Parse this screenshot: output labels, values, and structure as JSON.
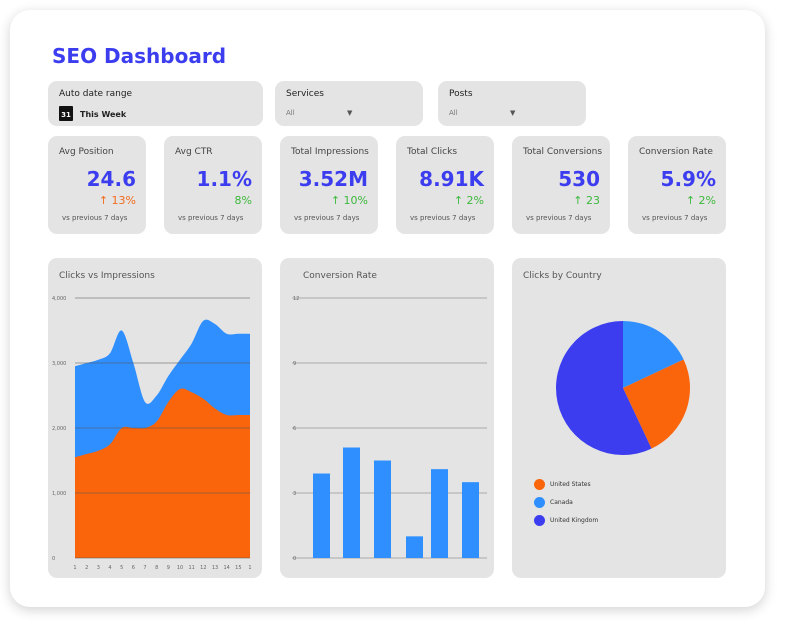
{
  "header": {
    "title": "SEO Dashboard"
  },
  "filters": [
    {
      "label": "Auto date range",
      "value": "This Week",
      "icon": "calendar-icon",
      "icon_text": "31"
    },
    {
      "label": "Services",
      "value": "All"
    },
    {
      "label": "Posts",
      "value": "All"
    }
  ],
  "kpis": [
    {
      "title": "Avg Position",
      "value": "24.6",
      "delta": "↑ 13%",
      "delta_color": "#f26b1d",
      "note": "vs previous 7 days"
    },
    {
      "title": "Avg CTR",
      "value": "1.1%",
      "delta": "8%",
      "delta_color": "#3cb83c",
      "note": "vs previous 7 days"
    },
    {
      "title": "Total Impressions",
      "value": "3.52M",
      "delta": "↑ 10%",
      "delta_color": "#3cb83c",
      "note": "vs previous 7 days"
    },
    {
      "title": "Total Clicks",
      "value": "8.91K",
      "delta": "↑ 2%",
      "delta_color": "#3cb83c",
      "note": "vs previous 7 days"
    },
    {
      "title": "Total Conversions",
      "value": "530",
      "delta": "↑ 23",
      "delta_color": "#3cb83c",
      "note": "vs previous 7 days"
    },
    {
      "title": "Conversion Rate",
      "value": "5.9%",
      "delta": "↑ 2%",
      "delta_color": "#3cb83c",
      "note": "vs previous 7 days"
    }
  ],
  "chart_data": [
    {
      "type": "area",
      "title": "Clicks vs Impressions",
      "grid": true,
      "x": [
        1,
        2,
        3,
        4,
        5,
        6,
        7,
        8,
        9,
        10,
        11,
        12,
        13,
        14,
        15,
        16
      ],
      "x_tick_labels": [
        "1",
        "2",
        "3",
        "4",
        "5",
        "6",
        "7",
        "8",
        "9",
        "10",
        "11",
        "12",
        "13",
        "14",
        "15",
        "1"
      ],
      "y_tick_labels": [
        "0",
        "1,000",
        "2,000",
        "3,000",
        "4,000"
      ],
      "ylim": [
        0,
        4000
      ],
      "series": [
        {
          "color": "#2f8fff",
          "values": [
            2950,
            3000,
            3050,
            3150,
            3500,
            3000,
            2400,
            2500,
            2800,
            3050,
            3300,
            3650,
            3600,
            3450,
            3450,
            3450
          ]
        },
        {
          "color": "#fa640a",
          "values": [
            1550,
            1600,
            1650,
            1750,
            2000,
            2000,
            2000,
            2100,
            2400,
            2600,
            2550,
            2450,
            2300,
            2200,
            2200,
            2200
          ]
        }
      ]
    },
    {
      "type": "bar",
      "title": "Conversion Rate",
      "grid": true,
      "ylim": [
        0,
        12
      ],
      "y_tick_labels": [
        "0",
        "3",
        "6",
        "9",
        "12"
      ],
      "color": "#2f8fff",
      "values": [
        3.9,
        5.1,
        4.5,
        1.0,
        4.1,
        3.5
      ]
    },
    {
      "type": "pie",
      "title": "Clicks by Country",
      "legend": "bottom-left",
      "slices": [
        {
          "label": "United States",
          "value": 25,
          "color": "#fa640a"
        },
        {
          "label": "Canada",
          "value": 18,
          "color": "#2f8fff"
        },
        {
          "label": "United Kingdom",
          "value": 57,
          "color": "#3d3df0"
        }
      ]
    }
  ]
}
